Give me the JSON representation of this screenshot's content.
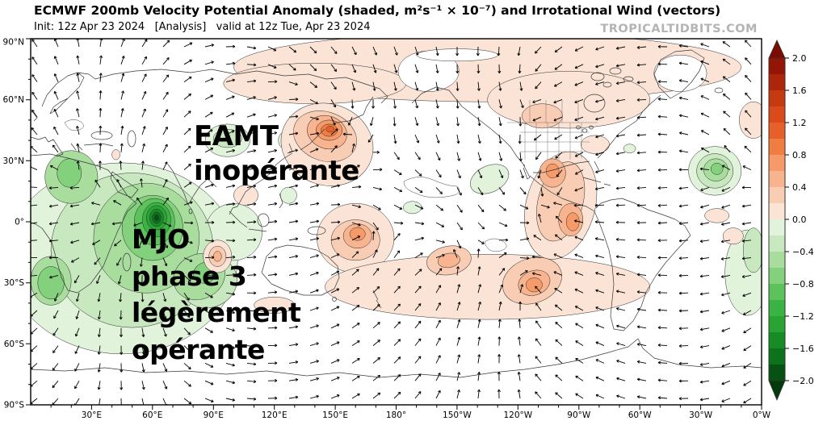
{
  "header": {
    "title": "ECMWF 200mb Velocity Potential Anomaly (shaded, m²s⁻¹ × 10⁻⁷) and Irrotational Wind (vectors)",
    "subtitle": "Init: 12z Apr 23 2024   [Analysis]   valid at 12z Tue, Apr 23 2024",
    "watermark": "TROPICALTIDBITS.COM"
  },
  "annotations": {
    "eamt_lines": [
      "EAMT",
      "inopérante"
    ],
    "mjo_lines": [
      "MJO",
      "phase 3",
      "légèrement",
      "opérante"
    ]
  },
  "chart_data": {
    "type": "heatmap",
    "model": "ECMWF",
    "field": "200mb Velocity Potential Anomaly",
    "overlay": "Irrotational Wind (vectors)",
    "units": "m²s⁻¹ × 10⁻⁷",
    "init": "12z Apr 23 2024",
    "mode": "Analysis",
    "valid": "12z Tue, Apr 23 2024",
    "map_extent": {
      "lon_min": 0,
      "lon_max": 360,
      "lat_min": -90,
      "lat_max": 90
    },
    "lon_ticks": [
      {
        "v": 30,
        "label": "30°E"
      },
      {
        "v": 60,
        "label": "60°E"
      },
      {
        "v": 90,
        "label": "90°E"
      },
      {
        "v": 120,
        "label": "120°E"
      },
      {
        "v": 150,
        "label": "150°E"
      },
      {
        "v": 180,
        "label": "180°"
      },
      {
        "v": 210,
        "label": "150°W"
      },
      {
        "v": 240,
        "label": "120°W"
      },
      {
        "v": 270,
        "label": "90°W"
      },
      {
        "v": 300,
        "label": "60°W"
      },
      {
        "v": 330,
        "label": "30°W"
      },
      {
        "v": 360,
        "label": "0°W"
      }
    ],
    "lat_ticks": [
      {
        "v": 90,
        "label": "90°N"
      },
      {
        "v": 60,
        "label": "60°N"
      },
      {
        "v": 30,
        "label": "30°N"
      },
      {
        "v": 0,
        "label": "0°"
      },
      {
        "v": -30,
        "label": "30°S"
      },
      {
        "v": -60,
        "label": "60°S"
      },
      {
        "v": -90,
        "label": "90°S"
      }
    ],
    "colorbar": {
      "min": -2.0,
      "max": 2.0,
      "interval": 0.2,
      "tick_labels": [
        "2.0",
        "1.6",
        "1.2",
        "0.8",
        "0.4",
        "0.0",
        "−0.4",
        "−0.8",
        "−1.2",
        "−1.6",
        "−2.0"
      ],
      "positive_colors": [
        "#fbe3d6",
        "#f9cdb4",
        "#f7b48e",
        "#f59a68",
        "#f07e42",
        "#e7602a",
        "#da4a1b",
        "#c63a12",
        "#ad260b",
        "#941405"
      ],
      "negative_colors": [
        "#e2f3dc",
        "#c8e9bf",
        "#a9dd9e",
        "#83d17c",
        "#5cc35c",
        "#3bb342",
        "#28a334",
        "#178c26",
        "#0c721b",
        "#055212"
      ],
      "positive_arrow": "#7c0b02",
      "negative_arrow": "#033a0c",
      "zero_color": "#ffffff"
    },
    "shaded_regions": [
      [
        45,
        -18,
        57,
        47,
        0,
        -0.2
      ],
      [
        100,
        -5,
        14,
        14,
        0,
        -0.2
      ],
      [
        97,
        40,
        11,
        8,
        0,
        -0.2
      ],
      [
        127,
        40,
        5,
        5,
        0,
        -0.2
      ],
      [
        127,
        13,
        4,
        4,
        0,
        -0.2
      ],
      [
        337,
        25,
        13,
        12,
        0,
        -0.2
      ],
      [
        353,
        -25,
        11,
        21,
        0,
        -0.2
      ],
      [
        226,
        21,
        10,
        6.5,
        -25,
        -0.2
      ],
      [
        188,
        7,
        4.5,
        3,
        0,
        -0.2
      ],
      [
        295,
        36,
        3,
        2.2,
        0,
        -0.2
      ],
      [
        204,
        79,
        9,
        2,
        0,
        -0.2
      ],
      [
        50,
        -14,
        40,
        38,
        0,
        -0.4
      ],
      [
        88,
        -30,
        14,
        12,
        -25,
        -0.4
      ],
      [
        356,
        -14,
        5,
        11,
        0,
        -0.4
      ],
      [
        337,
        25,
        9,
        8.5,
        0,
        -0.4
      ],
      [
        97,
        41,
        7,
        4.5,
        0,
        -0.4
      ],
      [
        57,
        -8,
        26,
        27,
        0,
        -0.6
      ],
      [
        20,
        22,
        13,
        13,
        0,
        -0.6
      ],
      [
        10,
        -29,
        10,
        12,
        0,
        -0.6
      ],
      [
        83,
        -27,
        13,
        11,
        -25,
        -0.6
      ],
      [
        337.5,
        25.5,
        6,
        5.5,
        0,
        -0.6
      ],
      [
        19,
        24,
        6,
        7,
        0,
        -0.8
      ],
      [
        10,
        -30,
        6.5,
        8,
        0,
        -0.8
      ],
      [
        86,
        -25,
        6,
        5,
        -25,
        -0.8
      ],
      [
        338,
        26,
        3,
        2.8,
        0,
        -0.8
      ],
      [
        60,
        -3,
        15,
        16,
        0,
        -0.8
      ],
      [
        61,
        0,
        10,
        11.5,
        0,
        -1.0
      ],
      [
        62,
        1,
        7,
        8.5,
        0,
        -1.2
      ],
      [
        62,
        2,
        5,
        6,
        0,
        -1.4
      ],
      [
        62,
        2,
        3.4,
        4.3,
        0,
        -1.6
      ],
      [
        62,
        2,
        2.1,
        2.8,
        0,
        -1.8
      ],
      [
        62,
        2,
        1.1,
        1.5,
        0,
        -2.0
      ],
      [
        225,
        76,
        125,
        17,
        0,
        0.2
      ],
      [
        140,
        68,
        45,
        10,
        0,
        0.2
      ],
      [
        265,
        60,
        40,
        14,
        0,
        0.2
      ],
      [
        146,
        38,
        23,
        20,
        20,
        0.2
      ],
      [
        160,
        -8,
        19,
        17,
        0,
        0.2
      ],
      [
        225,
        -32,
        80,
        16,
        0,
        0.2
      ],
      [
        261,
        8,
        17,
        27,
        15,
        0.2
      ],
      [
        106,
        13,
        6,
        5,
        0,
        0.2
      ],
      [
        92,
        -17,
        7,
        8,
        0,
        0.2
      ],
      [
        120,
        -41,
        10,
        4,
        0,
        0.2
      ],
      [
        278,
        38,
        7,
        4.5,
        0,
        0.2
      ],
      [
        356,
        50,
        7,
        9,
        0,
        0.2
      ],
      [
        338,
        3,
        6,
        3.5,
        0,
        0.2
      ],
      [
        346,
        -7,
        5,
        4,
        0,
        0.2
      ],
      [
        42,
        33,
        2,
        2.5,
        0,
        0.2
      ],
      [
        252,
        52,
        10,
        6,
        0,
        0.4
      ],
      [
        145,
        42,
        16,
        12,
        20,
        0.4
      ],
      [
        206,
        -19,
        11,
        7,
        -10,
        0.4
      ],
      [
        247,
        -29,
        15,
        11,
        -20,
        0.4
      ],
      [
        261,
        10,
        11,
        20,
        15,
        0.4
      ],
      [
        160,
        -9,
        12,
        10,
        0,
        0.4
      ],
      [
        92,
        -17,
        4.2,
        5,
        0,
        0.4
      ],
      [
        146,
        44,
        10,
        8,
        20,
        0.6
      ],
      [
        161,
        -7,
        7,
        6,
        0,
        0.6
      ],
      [
        206,
        -19,
        5.5,
        3.5,
        -10,
        0.6
      ],
      [
        248,
        -30,
        8,
        6,
        -20,
        0.6
      ],
      [
        257,
        24,
        6.5,
        7,
        0,
        0.6
      ],
      [
        266,
        1,
        6,
        8,
        0,
        0.6
      ],
      [
        92,
        -17,
        2,
        2.5,
        0,
        0.6
      ],
      [
        147,
        45,
        6.5,
        5,
        0,
        0.8
      ],
      [
        161,
        -6,
        3.8,
        3.2,
        0,
        0.8
      ],
      [
        248,
        -31,
        4,
        3.5,
        0,
        0.8
      ],
      [
        257,
        25,
        3.2,
        3.5,
        0,
        0.8
      ],
      [
        267,
        0,
        3.2,
        4.5,
        0,
        0.8
      ],
      [
        147,
        45,
        4,
        3,
        0,
        1.0
      ],
      [
        147.5,
        45.5,
        2,
        1.5,
        0,
        1.2
      ],
      [
        320,
        73,
        13,
        9,
        0,
        0
      ],
      [
        196,
        74,
        15,
        10,
        0,
        0
      ],
      [
        210,
        82,
        20,
        3,
        0,
        0
      ]
    ],
    "flow_centers": [
      [
        62,
        2,
        4.0
      ],
      [
        20,
        24,
        1.0
      ],
      [
        10,
        -30,
        0.9
      ],
      [
        85,
        -27,
        1.1
      ],
      [
        337,
        25,
        1.1
      ],
      [
        97,
        40,
        0.5
      ],
      [
        147,
        45,
        -2.2
      ],
      [
        262,
        12,
        -1.8
      ],
      [
        266,
        0,
        -0.8
      ],
      [
        161,
        -7,
        -1.6
      ],
      [
        247,
        -29,
        -1.4
      ],
      [
        206,
        -19,
        -0.9
      ],
      [
        92,
        -17,
        -0.7
      ],
      [
        120,
        70,
        -0.9
      ],
      [
        250,
        64,
        -0.7
      ]
    ]
  }
}
